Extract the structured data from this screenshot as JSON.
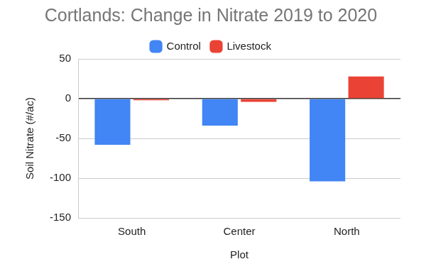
{
  "chart_data": {
    "type": "bar",
    "title": "Cortlands: Change in Nitrate 2019 to 2020",
    "x_label": "Plot",
    "y_label": "Soil Nitrate (#/ac)",
    "categories": [
      "South",
      "Center",
      "North"
    ],
    "series": [
      {
        "name": "Control",
        "color": "#4285f4",
        "values": [
          -58,
          -34,
          -104
        ]
      },
      {
        "name": "Livestock",
        "color": "#ea4335",
        "values": [
          -2,
          -4,
          28
        ]
      }
    ],
    "ylim": [
      -150,
      50
    ],
    "yticks": [
      -150,
      -100,
      -50,
      0,
      50
    ],
    "grid": true,
    "legend": "top"
  }
}
